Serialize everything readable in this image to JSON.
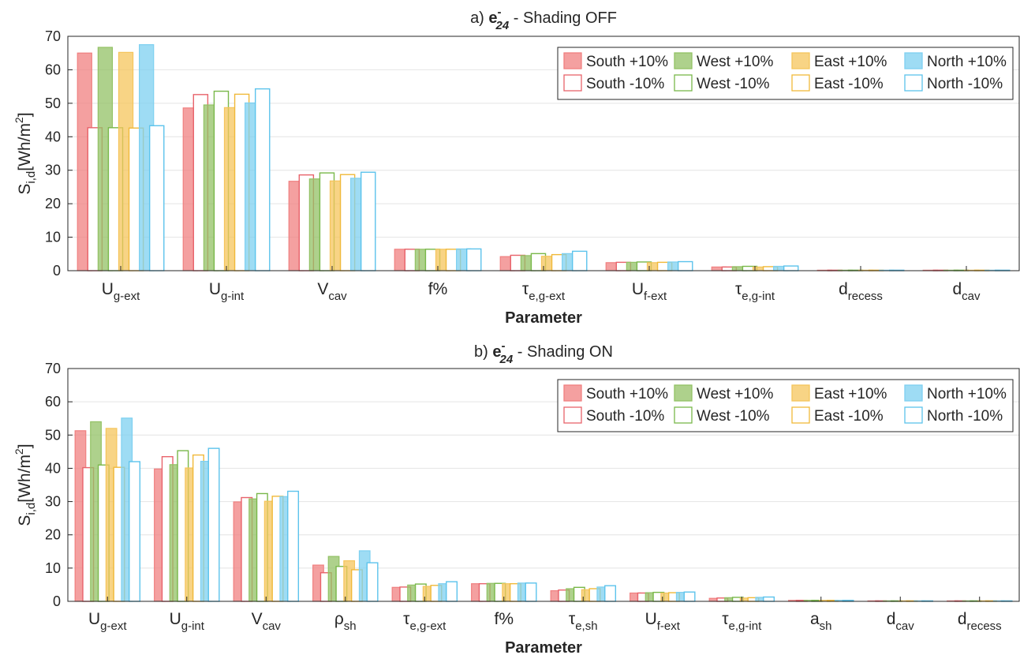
{
  "chart_data": [
    {
      "type": "bar",
      "title": {
        "prefix": "a) ",
        "symbol": "e",
        "sup": "-",
        "sub": "24",
        "suffix": " - Shading OFF"
      },
      "xlabel": "Parameter",
      "ylabel": {
        "main": "S",
        "sub": "i,d",
        "unit": "[Wh/m",
        "unit_sup": "2",
        "unit_close": "]"
      },
      "ylim": [
        0,
        70
      ],
      "yticks": [
        0,
        10,
        20,
        30,
        40,
        50,
        60,
        70
      ],
      "grid": true,
      "legend_position": "top-right",
      "categories": [
        {
          "main": "U",
          "sub": "g-ext"
        },
        {
          "main": "U",
          "sub": "g-int"
        },
        {
          "main": "V",
          "sub": "cav"
        },
        {
          "main": "f%",
          "sub": ""
        },
        {
          "main": "τ",
          "sub": "e,g-ext"
        },
        {
          "main": "U",
          "sub": "f-ext"
        },
        {
          "main": "τ",
          "sub": "e,g-int"
        },
        {
          "main": "d",
          "sub": "recess"
        },
        {
          "main": "d",
          "sub": "cav"
        }
      ],
      "series": [
        {
          "name": "South +10%",
          "color": "#f08080",
          "style": "filled",
          "values": [
            65.0,
            48.6,
            26.7,
            6.4,
            4.2,
            2.4,
            1.1,
            0.05,
            0.03
          ]
        },
        {
          "name": "South -10%",
          "color": "#e8636b",
          "style": "outline",
          "values": [
            42.7,
            52.6,
            28.6,
            6.4,
            4.6,
            2.5,
            1.1,
            0.05,
            0.03
          ]
        },
        {
          "name": "West +10%",
          "color": "#93c265",
          "style": "filled",
          "values": [
            66.7,
            49.5,
            27.4,
            6.4,
            4.5,
            2.5,
            1.2,
            0.05,
            0.03
          ]
        },
        {
          "name": "West -10%",
          "color": "#79b84a",
          "style": "outline",
          "values": [
            42.7,
            53.6,
            29.2,
            6.4,
            5.1,
            2.6,
            1.3,
            0.05,
            0.03
          ]
        },
        {
          "name": "East +10%",
          "color": "#f5c55c",
          "style": "filled",
          "values": [
            65.2,
            48.7,
            26.8,
            6.4,
            4.3,
            2.4,
            1.1,
            0.05,
            0.03
          ]
        },
        {
          "name": "East -10%",
          "color": "#f0b93a",
          "style": "outline",
          "values": [
            42.6,
            52.7,
            28.7,
            6.4,
            4.8,
            2.5,
            1.2,
            0.05,
            0.03
          ]
        },
        {
          "name": "North +10%",
          "color": "#7ed0f0",
          "style": "filled",
          "values": [
            67.5,
            50.1,
            27.6,
            6.5,
            5.1,
            2.6,
            1.3,
            0.05,
            0.03
          ]
        },
        {
          "name": "North -10%",
          "color": "#5cc3ec",
          "style": "outline",
          "values": [
            43.3,
            54.3,
            29.4,
            6.5,
            5.8,
            2.7,
            1.4,
            0.05,
            0.03
          ]
        }
      ]
    },
    {
      "type": "bar",
      "title": {
        "prefix": "b) ",
        "symbol": "e",
        "sup": "-",
        "sub": "24",
        "suffix": " - Shading ON"
      },
      "xlabel": "Parameter",
      "ylabel": {
        "main": "S",
        "sub": "i,d",
        "unit": "[Wh/m",
        "unit_sup": "2",
        "unit_close": "]"
      },
      "ylim": [
        0,
        70
      ],
      "yticks": [
        0,
        10,
        20,
        30,
        40,
        50,
        60,
        70
      ],
      "grid": true,
      "legend_position": "top-right",
      "categories": [
        {
          "main": "U",
          "sub": "g-ext"
        },
        {
          "main": "U",
          "sub": "g-int"
        },
        {
          "main": "V",
          "sub": "cav"
        },
        {
          "main": "ρ",
          "sub": "sh"
        },
        {
          "main": "τ",
          "sub": "e,g-ext"
        },
        {
          "main": "f%",
          "sub": ""
        },
        {
          "main": "τ",
          "sub": "e,sh"
        },
        {
          "main": "U",
          "sub": "f-ext"
        },
        {
          "main": "τ",
          "sub": "e,g-int"
        },
        {
          "main": "a",
          "sub": "sh"
        },
        {
          "main": "d",
          "sub": "cav"
        },
        {
          "main": "d",
          "sub": "recess"
        }
      ],
      "series": [
        {
          "name": "South +10%",
          "color": "#f08080",
          "style": "filled",
          "values": [
            51.3,
            39.8,
            29.9,
            10.9,
            4.2,
            5.3,
            3.2,
            2.5,
            0.9,
            0.3,
            0.1,
            0.1
          ]
        },
        {
          "name": "South -10%",
          "color": "#e8636b",
          "style": "outline",
          "values": [
            40.2,
            43.5,
            31.2,
            8.6,
            4.3,
            5.3,
            3.4,
            2.5,
            1.0,
            0.3,
            0.1,
            0.1
          ]
        },
        {
          "name": "West +10%",
          "color": "#93c265",
          "style": "filled",
          "values": [
            54.0,
            41.1,
            30.8,
            13.5,
            4.9,
            5.4,
            3.8,
            2.6,
            1.1,
            0.3,
            0.1,
            0.1
          ]
        },
        {
          "name": "West -10%",
          "color": "#79b84a",
          "style": "outline",
          "values": [
            41.0,
            45.3,
            32.4,
            10.5,
            5.2,
            5.4,
            4.2,
            2.7,
            1.2,
            0.3,
            0.1,
            0.1
          ]
        },
        {
          "name": "East +10%",
          "color": "#f5c55c",
          "style": "filled",
          "values": [
            52.0,
            40.1,
            30.1,
            12.2,
            4.5,
            5.3,
            3.5,
            2.5,
            1.0,
            0.3,
            0.1,
            0.1
          ]
        },
        {
          "name": "East -10%",
          "color": "#f0b93a",
          "style": "outline",
          "values": [
            40.3,
            44.0,
            31.6,
            9.5,
            4.8,
            5.3,
            3.8,
            2.6,
            1.1,
            0.3,
            0.1,
            0.1
          ]
        },
        {
          "name": "North +10%",
          "color": "#7ed0f0",
          "style": "filled",
          "values": [
            55.1,
            42.1,
            31.5,
            15.2,
            5.3,
            5.5,
            4.3,
            2.7,
            1.2,
            0.3,
            0.1,
            0.1
          ]
        },
        {
          "name": "North -10%",
          "color": "#5cc3ec",
          "style": "outline",
          "values": [
            42.0,
            46.0,
            33.1,
            11.6,
            5.9,
            5.5,
            4.7,
            2.8,
            1.3,
            0.3,
            0.1,
            0.1
          ]
        }
      ]
    }
  ]
}
